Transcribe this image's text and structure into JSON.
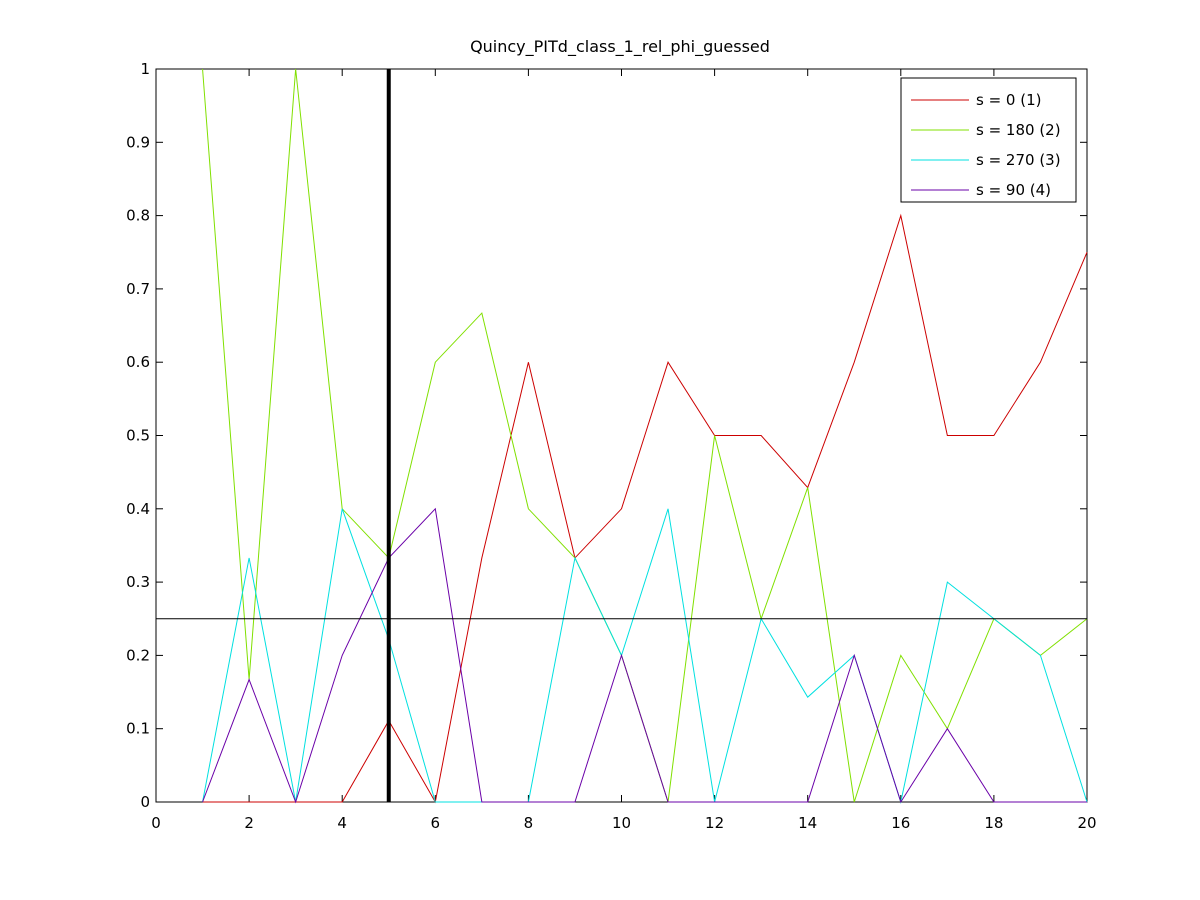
{
  "chart_data": {
    "type": "line",
    "title": "Quincy_PITd_class_1_rel_phi_guessed",
    "xlabel": "",
    "ylabel": "",
    "xlim": [
      0,
      20
    ],
    "ylim": [
      0,
      1
    ],
    "x_ticks": [
      0,
      2,
      4,
      6,
      8,
      10,
      12,
      14,
      16,
      18,
      20
    ],
    "y_ticks": [
      0,
      0.1,
      0.2,
      0.3,
      0.4,
      0.5,
      0.6,
      0.7,
      0.8,
      0.9,
      1
    ],
    "grid": false,
    "legend_position": "top-right",
    "x": [
      1,
      2,
      3,
      4,
      5,
      6,
      7,
      8,
      9,
      10,
      11,
      12,
      13,
      14,
      15,
      16,
      17,
      18,
      19,
      20
    ],
    "series": [
      {
        "name": "s = 0 (1)",
        "color": "#cc0000",
        "values": [
          0,
          0,
          0,
          0,
          0.111,
          0,
          0.333,
          0.6,
          0.333,
          0.4,
          0.6,
          0.5,
          0.5,
          0.429,
          0.6,
          0.8,
          0.5,
          0.5,
          0.6,
          0.75
        ]
      },
      {
        "name": "s = 180 (2)",
        "color": "#80e000",
        "values": [
          1,
          0.167,
          1,
          0.4,
          0.333,
          0.6,
          0.667,
          0.4,
          0.333,
          0.2,
          0,
          0.5,
          0.25,
          0.429,
          0,
          0.2,
          0.1,
          0.25,
          0.2,
          0.25
        ]
      },
      {
        "name": "s = 270 (3)",
        "color": "#00e0e0",
        "values": [
          0,
          0.333,
          0,
          0.4,
          0.222,
          0,
          0,
          0,
          0.333,
          0.2,
          0.4,
          0,
          0.25,
          0.143,
          0.2,
          0,
          0.3,
          0.25,
          0.2,
          0
        ]
      },
      {
        "name": "s = 90 (4)",
        "color": "#6a00a8",
        "values": [
          0,
          0.167,
          0,
          0.2,
          0.333,
          0.4,
          0,
          0,
          0,
          0.2,
          0,
          0,
          0,
          0,
          0.2,
          0,
          0.1,
          0,
          0,
          0
        ]
      }
    ],
    "reference_lines": {
      "horizontal": {
        "y": 0.25,
        "color": "#000000"
      },
      "vertical": {
        "x": 5,
        "color": "#000000"
      }
    }
  }
}
